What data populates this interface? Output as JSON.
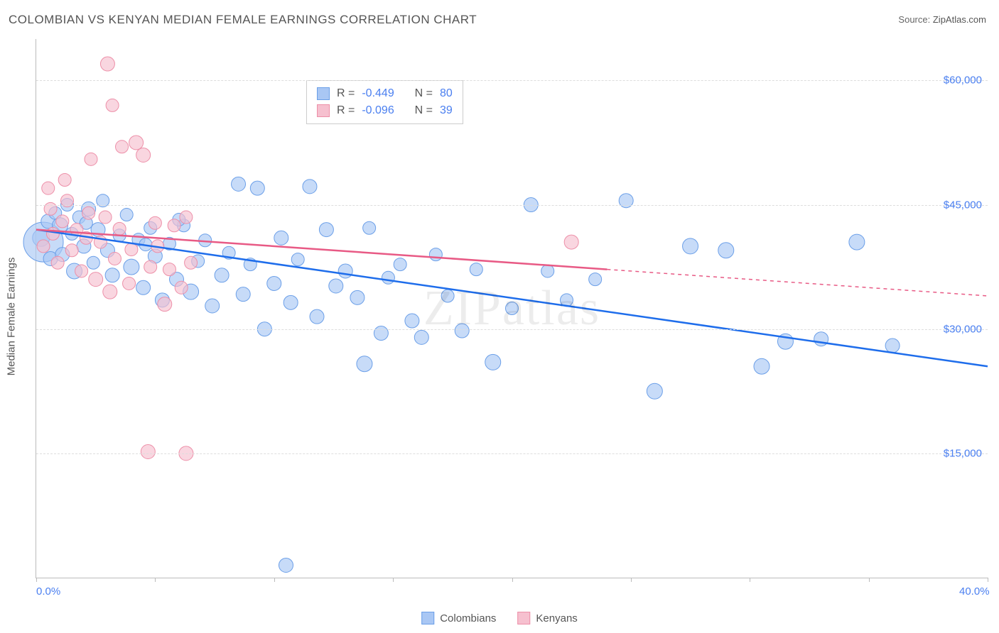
{
  "title": "COLOMBIAN VS KENYAN MEDIAN FEMALE EARNINGS CORRELATION CHART",
  "source_label": "Source:",
  "source_value": "ZipAtlas.com",
  "watermark": "ZIPatlas",
  "y_axis_label": "Median Female Earnings",
  "chart": {
    "type": "scatter",
    "background_color": "#ffffff",
    "grid_color": "#dddddd",
    "axis_color": "#bbbbbb",
    "tick_label_color": "#4a7ff0",
    "text_color": "#555555",
    "xlim": [
      0,
      40
    ],
    "ylim": [
      0,
      65000
    ],
    "x_ticks": [
      0,
      5,
      10,
      15,
      20,
      25,
      30,
      35,
      40
    ],
    "x_tick_labels": {
      "0": "0.0%",
      "40": "40.0%"
    },
    "y_ticks": [
      15000,
      30000,
      45000,
      60000
    ],
    "y_tick_labels": {
      "15000": "$15,000",
      "30000": "$30,000",
      "45000": "$45,000",
      "60000": "$60,000"
    },
    "series": [
      {
        "name": "Colombians",
        "color_fill": "#a9c7f4",
        "color_stroke": "#6b9fe8",
        "reg_color": "#1e6deb",
        "R": "-0.449",
        "N": "80",
        "reg_line": {
          "x1": 0,
          "y1": 42000,
          "x2": 40,
          "y2": 25500
        },
        "reg_dash_from_x": null,
        "points": [
          [
            0.2,
            41000,
            12
          ],
          [
            0.3,
            40500,
            28
          ],
          [
            0.5,
            43000,
            10
          ],
          [
            0.6,
            38500,
            10
          ],
          [
            0.8,
            44000,
            9
          ],
          [
            1.0,
            42500,
            11
          ],
          [
            1.1,
            39000,
            10
          ],
          [
            1.3,
            45000,
            9
          ],
          [
            1.5,
            41500,
            9
          ],
          [
            1.6,
            37000,
            11
          ],
          [
            1.8,
            43500,
            9
          ],
          [
            2.0,
            40000,
            10
          ],
          [
            2.2,
            44500,
            10
          ],
          [
            2.4,
            38000,
            9
          ],
          [
            2.6,
            42000,
            10
          ],
          [
            2.8,
            45500,
            9
          ],
          [
            3.0,
            39500,
            10
          ],
          [
            3.2,
            36500,
            10
          ],
          [
            3.5,
            41300,
            9
          ],
          [
            3.8,
            43800,
            9
          ],
          [
            4.0,
            37500,
            11
          ],
          [
            4.3,
            40800,
            9
          ],
          [
            4.5,
            35000,
            10
          ],
          [
            4.8,
            42200,
            9
          ],
          [
            5.0,
            38800,
            10
          ],
          [
            5.3,
            33500,
            10
          ],
          [
            5.6,
            40300,
            9
          ],
          [
            5.9,
            36000,
            10
          ],
          [
            6.2,
            42500,
            9
          ],
          [
            6.5,
            34500,
            11
          ],
          [
            6.8,
            38200,
            9
          ],
          [
            7.1,
            40700,
            9
          ],
          [
            7.4,
            32800,
            10
          ],
          [
            7.8,
            36500,
            10
          ],
          [
            8.1,
            39200,
            9
          ],
          [
            8.5,
            47500,
            10
          ],
          [
            8.7,
            34200,
            10
          ],
          [
            9.0,
            37800,
            9
          ],
          [
            9.3,
            47000,
            10
          ],
          [
            9.6,
            30000,
            10
          ],
          [
            10.0,
            35500,
            10
          ],
          [
            10.3,
            41000,
            10
          ],
          [
            10.7,
            33200,
            10
          ],
          [
            11.0,
            38400,
            9
          ],
          [
            11.5,
            47200,
            10
          ],
          [
            11.8,
            31500,
            10
          ],
          [
            12.2,
            42000,
            10
          ],
          [
            12.6,
            35200,
            10
          ],
          [
            13.0,
            37000,
            10
          ],
          [
            13.5,
            33800,
            10
          ],
          [
            14.0,
            42200,
            9
          ],
          [
            14.5,
            29500,
            10
          ],
          [
            14.8,
            36200,
            9
          ],
          [
            15.3,
            37800,
            9
          ],
          [
            15.8,
            31000,
            10
          ],
          [
            16.2,
            29000,
            10
          ],
          [
            16.8,
            39000,
            9
          ],
          [
            17.3,
            34000,
            9
          ],
          [
            17.9,
            29800,
            10
          ],
          [
            18.5,
            37200,
            9
          ],
          [
            19.2,
            26000,
            11
          ],
          [
            20.0,
            32500,
            9
          ],
          [
            20.8,
            45000,
            10
          ],
          [
            21.5,
            37000,
            9
          ],
          [
            22.3,
            33500,
            9
          ],
          [
            23.5,
            36000,
            9
          ],
          [
            24.8,
            45500,
            10
          ],
          [
            26.0,
            22500,
            11
          ],
          [
            27.5,
            40000,
            11
          ],
          [
            29.0,
            39500,
            11
          ],
          [
            30.5,
            25500,
            11
          ],
          [
            31.5,
            28500,
            11
          ],
          [
            33.0,
            28800,
            10
          ],
          [
            34.5,
            40500,
            11
          ],
          [
            36.0,
            28000,
            10
          ],
          [
            10.5,
            1500,
            10
          ],
          [
            13.8,
            25800,
            11
          ],
          [
            6.0,
            43200,
            9
          ],
          [
            4.6,
            40200,
            9
          ],
          [
            2.1,
            42800,
            9
          ]
        ]
      },
      {
        "name": "Kenyans",
        "color_fill": "#f6c0cf",
        "color_stroke": "#ed8fa8",
        "reg_color": "#e85a85",
        "R": "-0.096",
        "N": "39",
        "reg_line": {
          "x1": 0,
          "y1": 42000,
          "x2": 40,
          "y2": 34000
        },
        "reg_dash_from_x": 24,
        "points": [
          [
            0.3,
            40000,
            9
          ],
          [
            0.5,
            47000,
            9
          ],
          [
            0.7,
            41500,
            9
          ],
          [
            0.9,
            38000,
            9
          ],
          [
            1.1,
            43000,
            9
          ],
          [
            1.3,
            45500,
            9
          ],
          [
            1.5,
            39500,
            9
          ],
          [
            1.7,
            42000,
            9
          ],
          [
            1.9,
            37000,
            9
          ],
          [
            2.1,
            41000,
            9
          ],
          [
            2.3,
            50500,
            9
          ],
          [
            2.5,
            36000,
            10
          ],
          [
            2.7,
            40500,
            9
          ],
          [
            2.9,
            43500,
            9
          ],
          [
            3.1,
            34500,
            10
          ],
          [
            3.3,
            38500,
            9
          ],
          [
            3.6,
            52000,
            9
          ],
          [
            3.9,
            35500,
            9
          ],
          [
            3.0,
            62000,
            10
          ],
          [
            3.2,
            57000,
            9
          ],
          [
            4.2,
            52500,
            10
          ],
          [
            4.5,
            51000,
            10
          ],
          [
            4.8,
            37500,
            9
          ],
          [
            5.1,
            40000,
            9
          ],
          [
            5.4,
            33000,
            10
          ],
          [
            5.8,
            42500,
            9
          ],
          [
            6.1,
            35000,
            9
          ],
          [
            6.3,
            43500,
            9
          ],
          [
            6.5,
            38000,
            9
          ],
          [
            4.7,
            15200,
            10
          ],
          [
            6.3,
            15000,
            10
          ],
          [
            0.6,
            44500,
            9
          ],
          [
            1.2,
            48000,
            9
          ],
          [
            2.2,
            44000,
            9
          ],
          [
            3.5,
            42100,
            9
          ],
          [
            4.0,
            39600,
            9
          ],
          [
            5.0,
            42800,
            9
          ],
          [
            5.6,
            37200,
            9
          ],
          [
            22.5,
            40500,
            10
          ]
        ]
      }
    ],
    "stats_legend": {
      "R_label": "R =",
      "N_label": "N ="
    },
    "bottom_legend_labels": [
      "Colombians",
      "Kenyans"
    ]
  }
}
